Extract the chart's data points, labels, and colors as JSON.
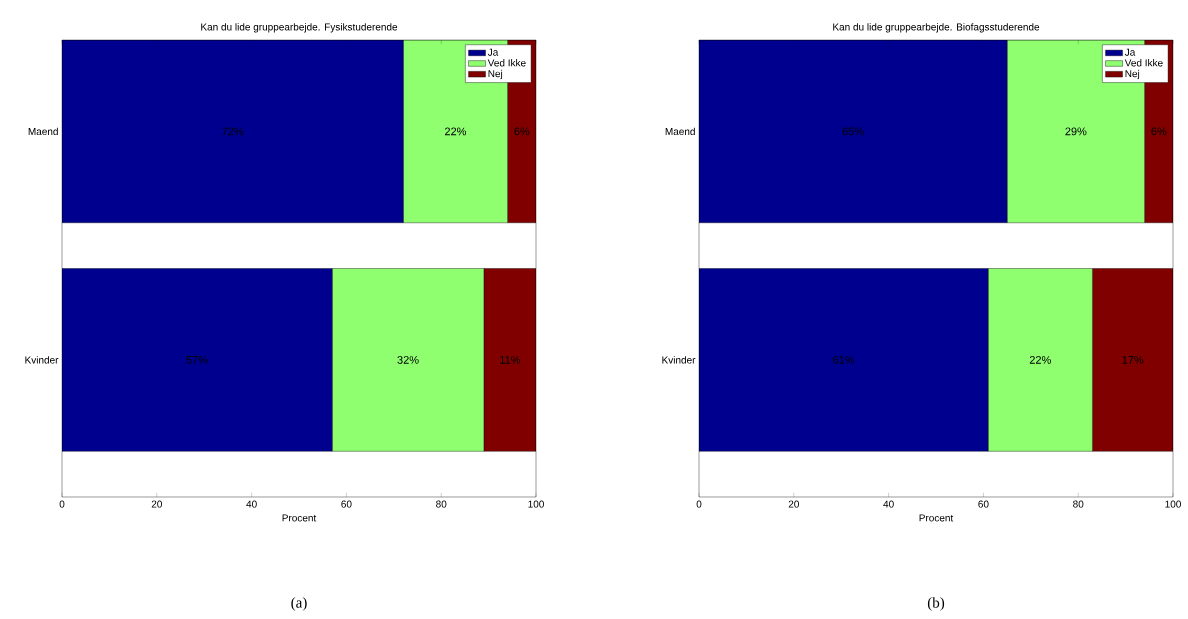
{
  "chart_data": [
    {
      "type": "bar",
      "orientation": "horizontal",
      "stacked": true,
      "title": "Kan du lide gruppearbejde. Fysikstuderende",
      "xlabel": "Procent",
      "categories": [
        "Maend",
        "Kvinder"
      ],
      "xlim": [
        0,
        100
      ],
      "xticks": [
        0,
        20,
        40,
        60,
        80,
        100
      ],
      "legend": "top right",
      "annotations": [
        "(a)"
      ],
      "series": [
        {
          "name": "Ja",
          "color": "#00008f",
          "values": [
            72,
            57
          ],
          "value_labels": [
            "72%",
            "57%"
          ]
        },
        {
          "name": "Ved Ikke",
          "color": "#8fff70",
          "values": [
            22,
            32
          ],
          "value_labels": [
            "22%",
            "32%"
          ]
        },
        {
          "name": "Nej",
          "color": "#800000",
          "values": [
            6,
            11
          ],
          "value_labels": [
            "6%",
            "11%"
          ]
        }
      ]
    },
    {
      "type": "bar",
      "orientation": "horizontal",
      "stacked": true,
      "title": "Kan du lide gruppearbejde. Biofagsstuderende",
      "xlabel": "Procent",
      "categories": [
        "Maend",
        "Kvinder"
      ],
      "xlim": [
        0,
        100
      ],
      "xticks": [
        0,
        20,
        40,
        60,
        80,
        100
      ],
      "legend": "top right",
      "annotations": [
        "(b)"
      ],
      "series": [
        {
          "name": "Ja",
          "color": "#00008f",
          "values": [
            65,
            61
          ],
          "value_labels": [
            "65%",
            "61%"
          ]
        },
        {
          "name": "Ved Ikke",
          "color": "#8fff70",
          "values": [
            29,
            22
          ],
          "value_labels": [
            "29%",
            "22%"
          ]
        },
        {
          "name": "Nej",
          "color": "#800000",
          "values": [
            6,
            17
          ],
          "value_labels": [
            "6%",
            "17%"
          ]
        }
      ]
    }
  ]
}
